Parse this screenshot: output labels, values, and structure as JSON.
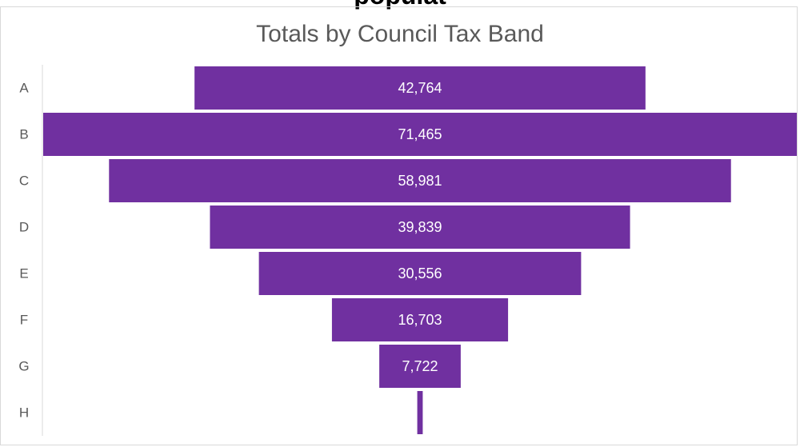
{
  "clipped_heading": "populat",
  "chart_data": {
    "type": "funnel",
    "title": "Totals by Council Tax Band",
    "categories": [
      "A",
      "B",
      "C",
      "D",
      "E",
      "F",
      "G",
      "H"
    ],
    "values": [
      42764,
      71465,
      58981,
      39839,
      30556,
      16703,
      7722,
      519
    ],
    "data_labels": [
      "42,764",
      "71,465",
      "58,981",
      "39,839",
      "30,556",
      "16,703",
      "7,722",
      ""
    ],
    "bar_color": "#7030A0",
    "axis_color": "#d9d9d9",
    "grid": false,
    "legend": "none"
  }
}
